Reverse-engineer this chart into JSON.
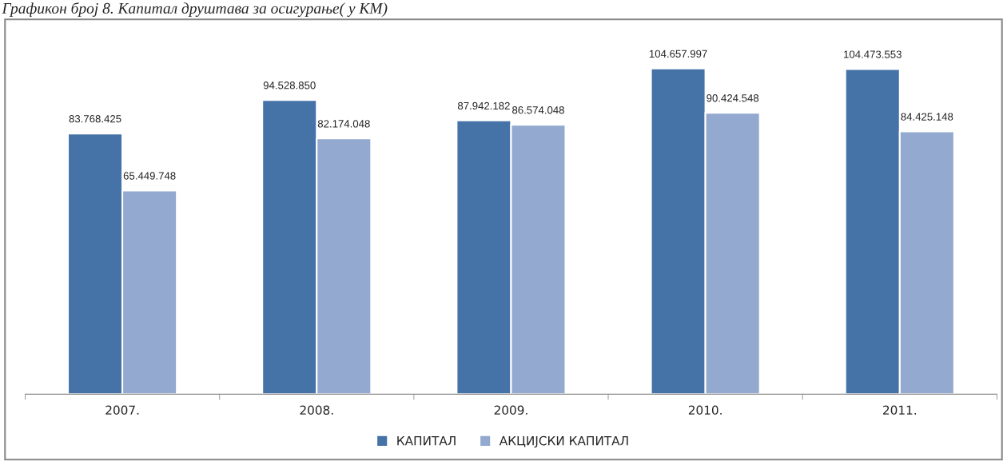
{
  "chart_data": {
    "type": "bar",
    "title": "Графикон број 8. Капитал друштава за осигурање( у КМ)",
    "categories": [
      "2007.",
      "2008.",
      "2009.",
      "2010.",
      "2011."
    ],
    "series": [
      {
        "name": "КАПИТАЛ",
        "color": "#4572a7",
        "values": [
          83768425,
          94528850,
          87942182,
          104657997,
          104473553
        ],
        "value_labels": [
          "83.768.425",
          "94.528.850",
          "87.942.182",
          "104.657.997",
          "104.473.553"
        ]
      },
      {
        "name": "АКЦИЈСКИ КАПИТАЛ",
        "color": "#93a9cf",
        "values": [
          65449748,
          82174048,
          86574048,
          90424548,
          84425148
        ],
        "value_labels": [
          "65.449.748",
          "82.174.048",
          "86.574.048",
          "90.424.548",
          "84.425.148"
        ]
      }
    ],
    "legend": "bottom",
    "grid": false
  }
}
